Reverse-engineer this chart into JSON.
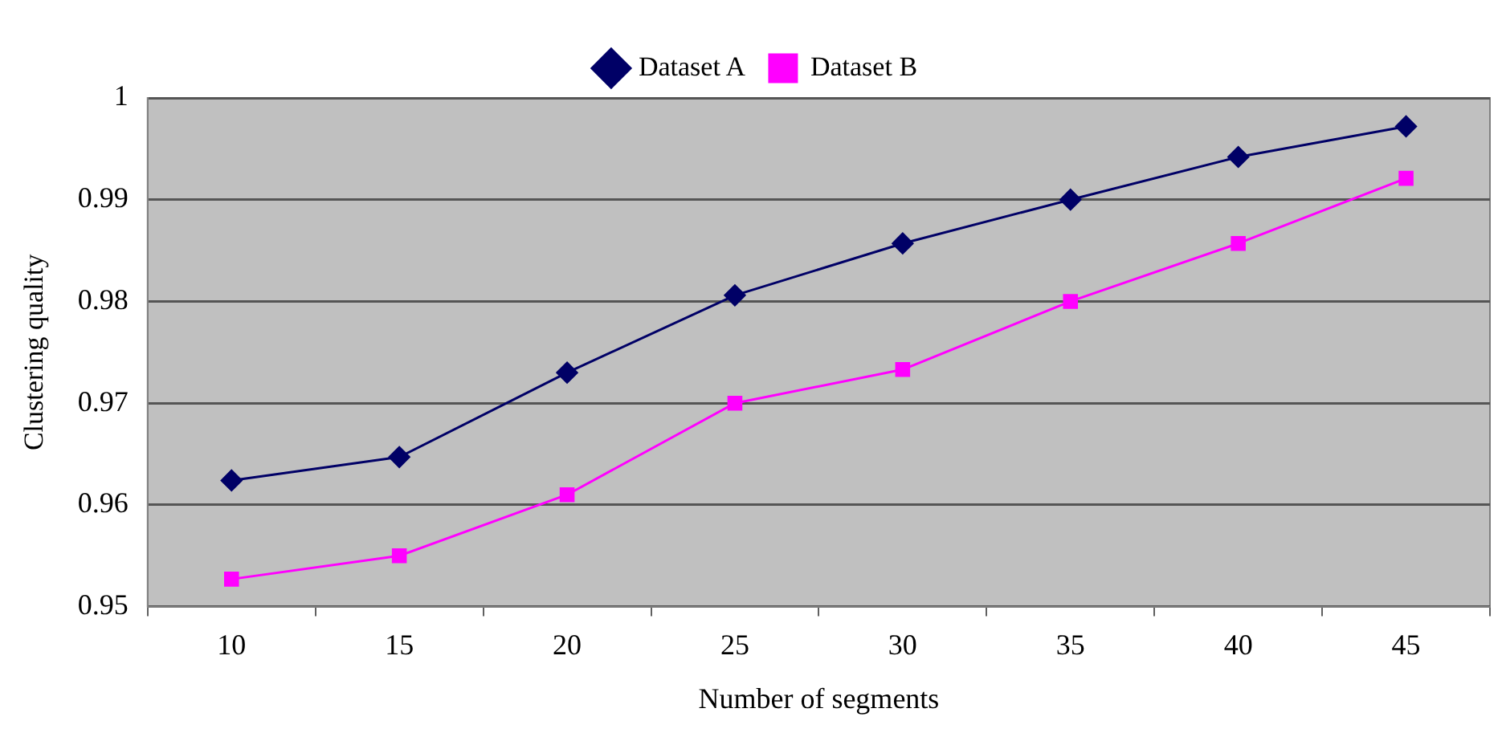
{
  "chart_data": {
    "type": "line",
    "xlabel": "Number of segments",
    "ylabel": "Clustering quality",
    "categories": [
      "10",
      "15",
      "20",
      "25",
      "30",
      "35",
      "40",
      "45"
    ],
    "series": [
      {
        "name": "Dataset A",
        "color": "#000066",
        "marker": "diamond",
        "values": [
          0.9624,
          0.9647,
          0.973,
          0.9806,
          0.9857,
          0.99,
          0.9942,
          0.9972
        ]
      },
      {
        "name": "Dataset B",
        "color": "#ff00ff",
        "marker": "square",
        "values": [
          0.9527,
          0.955,
          0.961,
          0.97,
          0.9733,
          0.98,
          0.9857,
          0.9921
        ]
      }
    ],
    "ylim": [
      0.95,
      1
    ],
    "yticks": [
      0.95,
      0.96,
      0.97,
      0.98,
      0.99,
      1
    ],
    "grid": "y",
    "legend": "top",
    "line_style": "solid"
  }
}
